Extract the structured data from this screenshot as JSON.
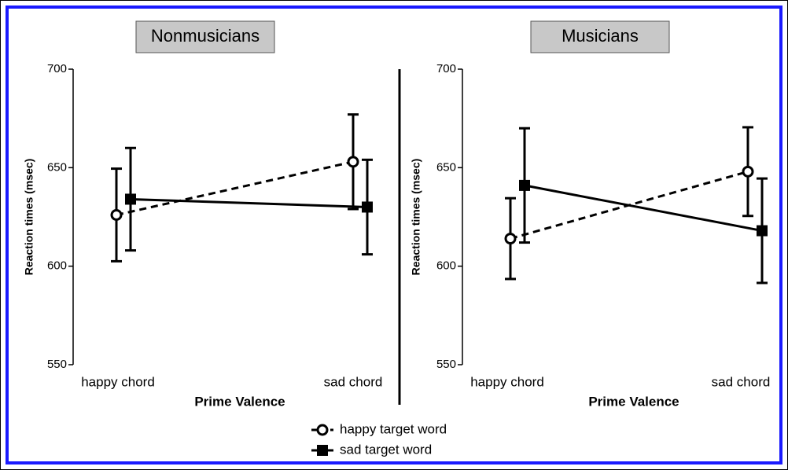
{
  "chart_data": [
    {
      "type": "line",
      "title": "Nonmusicians",
      "xlabel": "Prime Valence",
      "ylabel": "Reaction times (msec)",
      "categories": [
        "happy chord",
        "sad chord"
      ],
      "ylim": [
        550,
        700
      ],
      "yticks": [
        550,
        600,
        650,
        700
      ],
      "series": [
        {
          "name": "happy target word",
          "color": "#000000",
          "line_style": "dashed",
          "marker": "open-circle",
          "values": [
            626,
            653
          ],
          "errors": [
            23.5,
            24
          ]
        },
        {
          "name": "sad target word",
          "color": "#000000",
          "line_style": "solid",
          "marker": "filled-square",
          "values": [
            634,
            630
          ],
          "errors": [
            26,
            24
          ]
        }
      ]
    },
    {
      "type": "line",
      "title": "Musicians",
      "xlabel": "Prime Valence",
      "ylabel": "Reaction times (msec)",
      "categories": [
        "happy chord",
        "sad chord"
      ],
      "ylim": [
        550,
        700
      ],
      "yticks": [
        550,
        600,
        650,
        700
      ],
      "series": [
        {
          "color": "#000000",
          "line_style": "dashed",
          "marker": "open-circle",
          "values": [
            614,
            648
          ],
          "errors": [
            20.5,
            22.5
          ]
        },
        {
          "color": "#000000",
          "line_style": "solid",
          "marker": "filled-square",
          "values": [
            641,
            618
          ],
          "errors": [
            29,
            26.5
          ]
        }
      ]
    }
  ]
}
